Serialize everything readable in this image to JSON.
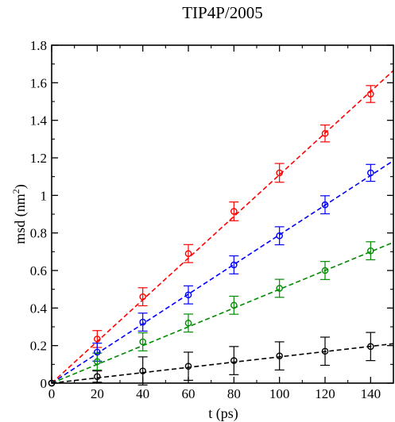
{
  "chart_data": {
    "type": "scatter",
    "title": "TIP4P/2005",
    "xlabel": "t (ps)",
    "ylabel_main": "msd (nm",
    "ylabel_sup": "2",
    "ylabel_close": ")",
    "xlim": [
      0,
      150
    ],
    "ylim": [
      0,
      1.8
    ],
    "xticks": [
      0,
      20,
      40,
      60,
      80,
      100,
      120,
      140
    ],
    "xtick_labels": [
      "0",
      "20",
      "40",
      "60",
      "80",
      "100",
      "120",
      "140"
    ],
    "yticks": [
      0,
      0.2,
      0.4,
      0.6,
      0.8,
      1.0,
      1.2,
      1.4,
      1.6,
      1.8
    ],
    "ytick_labels": [
      "0",
      "0.2",
      "0.4",
      "0.6",
      "0.8",
      "1",
      "1.2",
      "1.4",
      "1.6",
      "1.8"
    ],
    "grid": false,
    "legend": "none",
    "x": [
      0,
      20,
      40,
      60,
      80,
      100,
      120,
      140
    ],
    "series": [
      {
        "color": "#ff0000",
        "values": [
          0,
          0.235,
          0.46,
          0.69,
          0.915,
          1.12,
          1.33,
          1.54
        ],
        "errors": [
          0,
          0.045,
          0.048,
          0.048,
          0.05,
          0.05,
          0.045,
          0.045
        ],
        "fit_slope": 0.0111
      },
      {
        "color": "#0000ff",
        "values": [
          0,
          0.165,
          0.325,
          0.47,
          0.63,
          0.785,
          0.95,
          1.12
        ],
        "errors": [
          0,
          0.048,
          0.048,
          0.048,
          0.048,
          0.048,
          0.048,
          0.045
        ],
        "fit_slope": 0.0079
      },
      {
        "color": "#008c00",
        "values": [
          0,
          0.115,
          0.22,
          0.32,
          0.415,
          0.505,
          0.6,
          0.705
        ],
        "errors": [
          0,
          0.045,
          0.048,
          0.048,
          0.048,
          0.048,
          0.048,
          0.048
        ],
        "fit_slope": 0.005
      },
      {
        "color": "#000000",
        "values": [
          0,
          0.035,
          0.065,
          0.09,
          0.12,
          0.145,
          0.17,
          0.195
        ],
        "errors": [
          0,
          0.03,
          0.075,
          0.075,
          0.075,
          0.075,
          0.075,
          0.075
        ],
        "fit_slope": 0.0014
      }
    ]
  }
}
